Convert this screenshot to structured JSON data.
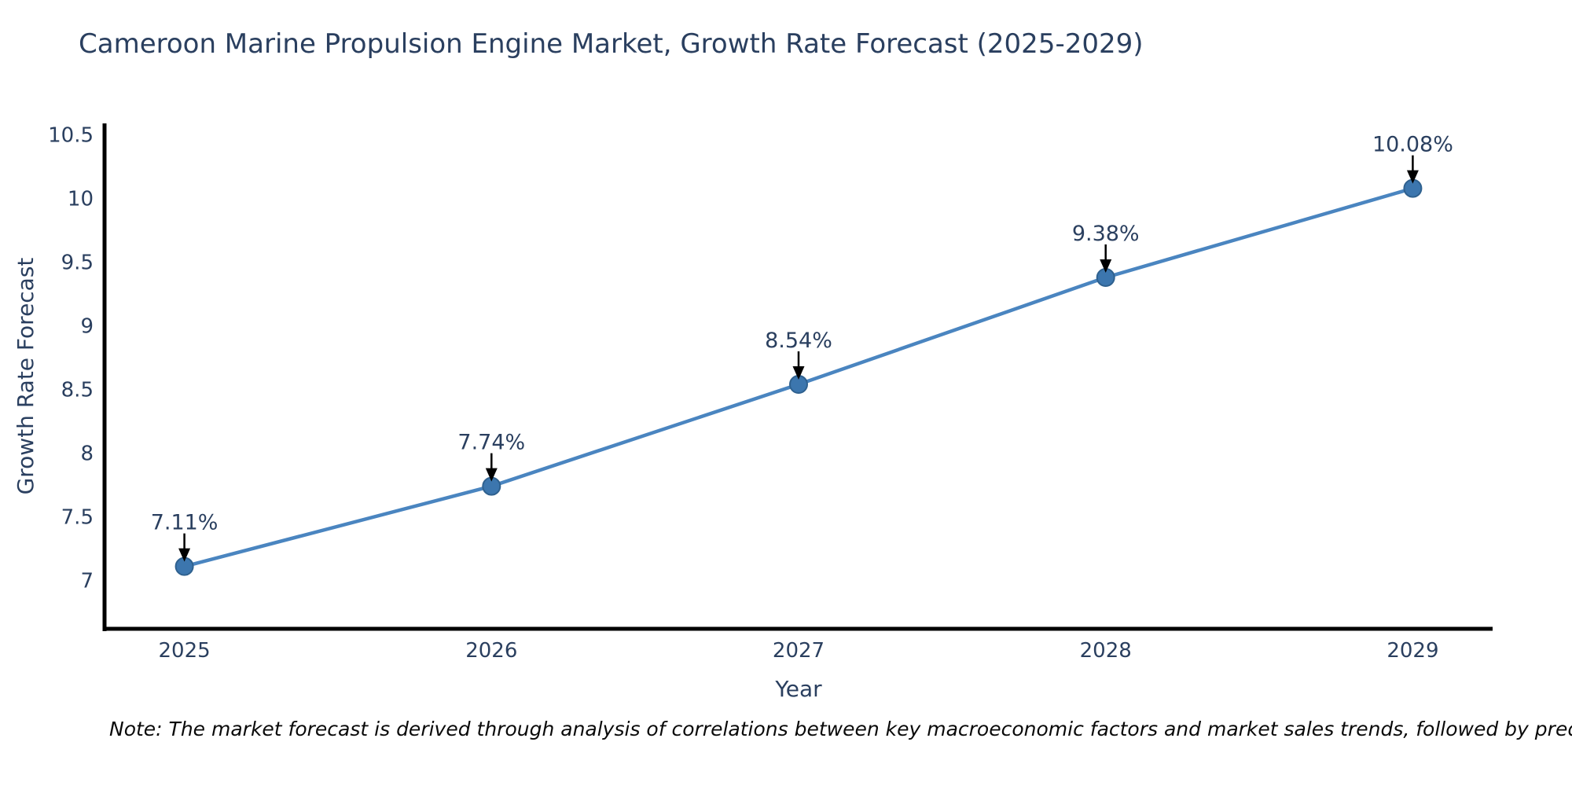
{
  "chart_data": {
    "type": "line",
    "title": "Cameroon Marine Propulsion Engine Market, Growth Rate Forecast (2025-2029)",
    "xlabel": "Year",
    "ylabel": "Growth Rate Forecast",
    "x": [
      2025,
      2026,
      2027,
      2028,
      2029
    ],
    "series": [
      {
        "name": "Growth Rate Forecast",
        "values": [
          7.11,
          7.74,
          8.54,
          9.38,
          10.08
        ],
        "point_labels": [
          "7.11%",
          "7.74%",
          "8.54%",
          "9.38%",
          "10.08%"
        ]
      }
    ],
    "xticks": [
      "2025",
      "2026",
      "2027",
      "2028",
      "2029"
    ],
    "yticks": [
      7,
      7.5,
      8,
      8.5,
      9,
      9.5,
      10,
      10.5
    ],
    "xlim": [
      2024.74,
      2029.26
    ],
    "ylim": [
      6.62,
      10.59
    ],
    "grid": false,
    "legend": "none",
    "annotation_style": "arrow-down-to-point",
    "colors": {
      "line": "#4a85c0",
      "marker_fill": "#3c76ae",
      "marker_edge": "#2f618f",
      "axis": "#000000",
      "labels": "#2a3f5f",
      "annotation_text": "#2a3f5f",
      "annotation_arrow": "#000000",
      "background": "#ffffff"
    },
    "note": "Note: The market forecast is derived through analysis of correlations between key macroeconomic factors and market sales trends, followed by predictive modeling to project future sal"
  }
}
